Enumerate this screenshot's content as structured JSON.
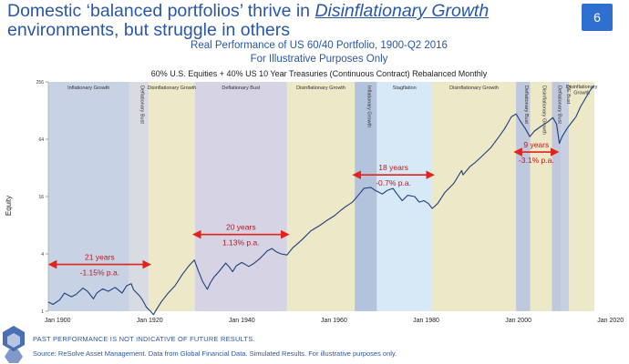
{
  "header": {
    "title_part1": "Domestic ‘balanced portfolios’ thrive in ",
    "title_emph": "Disinflationary Growth",
    "title_part2": "environments, but struggle in others",
    "page_number": "6",
    "subtitle1": "Real Performance of US 60/40 Portfolio, 1900-Q2 2016",
    "subtitle2": "For Illustrative Purposes Only"
  },
  "footer": {
    "disclaimer": "PAST PERFORMANCE IS NOT INDICATIVE OF FUTURE RESULTS.",
    "source": "Source: ReSolve Asset Management. Data from Global Financial Data. Simulated Results. For illustrative purposes only."
  },
  "chart_data": {
    "type": "line",
    "title": "60% U.S. Equities + 40% US 10 Year Treasuries (Continuous Contract) Rebalanced Monthly",
    "ylabel": "Equity",
    "xlabel": "",
    "y_scale": "log2",
    "ylim": [
      1,
      256
    ],
    "y_ticks": [
      1,
      4,
      16,
      64,
      256
    ],
    "xlim": [
      1898,
      2016.5
    ],
    "x_ticks": [
      {
        "value": 1900,
        "label": "Jan 1900"
      },
      {
        "value": 1920,
        "label": "Jan 1920"
      },
      {
        "value": 1940,
        "label": "Jan 1940"
      },
      {
        "value": 1960,
        "label": "Jan 1960"
      },
      {
        "value": 1980,
        "label": "Jan 1980"
      },
      {
        "value": 2000,
        "label": "Jan 2000"
      },
      {
        "value": 2020,
        "label": "Jan 2020"
      }
    ],
    "regimes": [
      {
        "label": "Inflationary Growth",
        "start": 1898,
        "end": 1915.5,
        "color": "#c7d2e4",
        "label_orientation": "horizontal"
      },
      {
        "label": "Deflationary Bust",
        "start": 1915.5,
        "end": 1919.8,
        "color": "#d9dbe3",
        "label_orientation": "vertical"
      },
      {
        "label": "Disinflationary Growth",
        "start": 1919.8,
        "end": 1929.8,
        "color": "#ece8c8",
        "label_orientation": "horizontal"
      },
      {
        "label": "Deflationary Bust",
        "start": 1929.8,
        "end": 1949.8,
        "color": "#d6d3e4",
        "label_orientation": "horizontal"
      },
      {
        "label": "Disinflationary Growth",
        "start": 1949.8,
        "end": 1964.5,
        "color": "#ece8c8",
        "label_orientation": "horizontal"
      },
      {
        "label": "Inflationary Growth",
        "start": 1964.5,
        "end": 1969.3,
        "color": "#b4c3dc",
        "label_orientation": "vertical"
      },
      {
        "label": "Stagflation",
        "start": 1969.3,
        "end": 1981.3,
        "color": "#d7e9f7",
        "label_orientation": "horizontal"
      },
      {
        "label": "Disinflationary Growth",
        "start": 1981.3,
        "end": 1999.5,
        "color": "#ece8c8",
        "label_orientation": "horizontal"
      },
      {
        "label": "Deflationary Bust",
        "start": 1999.5,
        "end": 2002.6,
        "color": "#bfc8dc",
        "label_orientation": "vertical"
      },
      {
        "label": "Disinflationary Growth",
        "start": 2002.6,
        "end": 2007.3,
        "color": "#ece8c8",
        "label_orientation": "vertical"
      },
      {
        "label": "Deflationary Bust",
        "start": 2007.3,
        "end": 2009.3,
        "color": "#bfc8dc",
        "label_orientation": "vertical"
      },
      {
        "label": "DE Bust",
        "start": 2009.3,
        "end": 2011.0,
        "color": "#c7d0e2",
        "label_orientation": "vertical"
      },
      {
        "label": "Disinflationary Growth",
        "start": 2011.0,
        "end": 2016.5,
        "color": "#ece8c8",
        "label_orientation": "horizontal"
      }
    ],
    "annotations": [
      {
        "years": "21 years",
        "rate": "-1.15% p.a.",
        "start": 1898.5,
        "end": 1919.8,
        "y": 3.1
      },
      {
        "years": "20 years",
        "rate": "1.13% p.a.",
        "start": 1929.8,
        "end": 1949.8,
        "y": 6.4
      },
      {
        "years": "18 years",
        "rate": "-0.7% p.a.",
        "start": 1964.5,
        "end": 1981.3,
        "y": 27
      },
      {
        "years": "9 years",
        "rate": "-3.1% p.a.",
        "start": 1999.5,
        "end": 2008.3,
        "y": 47
      }
    ],
    "series": [
      {
        "color": "#1f3f7a",
        "x": [
          1898.0,
          1899.0,
          1900.5,
          1901.5,
          1903.0,
          1904.0,
          1905.5,
          1906.5,
          1907.8,
          1908.5,
          1909.8,
          1911.0,
          1912.5,
          1914.0,
          1915.0,
          1916.0,
          1916.5,
          1917.8,
          1918.5,
          1919.3,
          1920.2,
          1920.8,
          1921.5,
          1922.5,
          1924.0,
          1925.5,
          1927.0,
          1928.5,
          1929.7,
          1930.5,
          1931.5,
          1932.5,
          1933.2,
          1934.0,
          1935.0,
          1936.5,
          1937.3,
          1938.0,
          1938.8,
          1940.0,
          1941.5,
          1942.5,
          1944.0,
          1945.5,
          1946.5,
          1947.5,
          1948.5,
          1949.8,
          1951.0,
          1953.0,
          1955.0,
          1957.0,
          1958.5,
          1960.0,
          1961.5,
          1962.5,
          1964.0,
          1965.5,
          1966.5,
          1968.0,
          1969.0,
          1970.5,
          1971.5,
          1972.8,
          1973.5,
          1974.8,
          1976.0,
          1977.5,
          1978.5,
          1979.5,
          1980.5,
          1981.3,
          1982.5,
          1984.0,
          1986.0,
          1987.7,
          1988.0,
          1989.5,
          1990.5,
          1992.0,
          1994.0,
          1995.5,
          1997.0,
          1998.5,
          1999.5,
          2000.5,
          2001.5,
          2002.5,
          2003.5,
          2005.0,
          2006.5,
          2007.5,
          2008.3,
          2008.9,
          2009.5,
          2010.5,
          2011.5,
          2012.5,
          2013.5,
          2014.5,
          2015.5,
          2016.4
        ],
        "y": [
          1.25,
          1.18,
          1.32,
          1.55,
          1.42,
          1.5,
          1.75,
          1.62,
          1.35,
          1.55,
          1.72,
          1.62,
          1.78,
          1.55,
          1.85,
          1.95,
          1.68,
          1.45,
          1.3,
          1.1,
          1.0,
          0.92,
          1.05,
          1.25,
          1.55,
          1.85,
          2.4,
          3.0,
          3.45,
          2.7,
          2.05,
          1.7,
          2.0,
          2.3,
          2.6,
          3.2,
          2.9,
          2.6,
          3.0,
          3.25,
          2.95,
          3.15,
          3.6,
          4.3,
          4.55,
          4.2,
          4.0,
          3.9,
          4.6,
          5.6,
          7.0,
          8.0,
          9.0,
          10.0,
          11.5,
          12.5,
          14.0,
          17.0,
          19.5,
          20.0,
          18.5,
          17.0,
          18.5,
          19.5,
          17.5,
          14.5,
          16.5,
          16.0,
          14.0,
          14.5,
          13.5,
          12.0,
          13.5,
          17.5,
          22.0,
          30.0,
          27.0,
          33.0,
          36.0,
          42.0,
          52.0,
          65.0,
          82.0,
          110.0,
          118.0,
          98.0,
          83.0,
          68.0,
          78.0,
          88.0,
          98.0,
          108.0,
          92.0,
          58.0,
          68.0,
          82.0,
          95.0,
          110.0,
          140.0,
          170.0,
          205.0,
          235.0
        ]
      }
    ]
  }
}
